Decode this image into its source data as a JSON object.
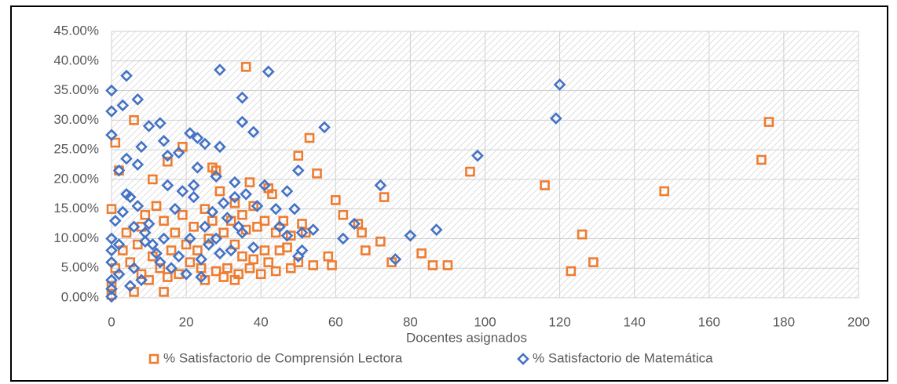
{
  "chart_data": {
    "type": "scatter",
    "x_label": "Docentes asignados",
    "xlim": [
      0,
      200
    ],
    "xticks": [
      0,
      20,
      40,
      60,
      80,
      100,
      120,
      140,
      160,
      180,
      200
    ],
    "ylim": [
      0,
      45
    ],
    "yticks": [
      {
        "value": 0,
        "label": "0.00%"
      },
      {
        "value": 5,
        "label": "5.00%"
      },
      {
        "value": 10,
        "label": "10.00%"
      },
      {
        "value": 15,
        "label": "15.00%"
      },
      {
        "value": 20,
        "label": "20.00%"
      },
      {
        "value": 25,
        "label": "25.00%"
      },
      {
        "value": 30,
        "label": "30.00%"
      },
      {
        "value": 35,
        "label": "35.00%"
      },
      {
        "value": 40,
        "label": "40.00%"
      },
      {
        "value": 45,
        "label": "45.00%"
      }
    ],
    "grid": true,
    "legend": "bottom",
    "series": [
      {
        "name": "% Satisfactorio de Comprensión Lectora",
        "color": "#ed7d31",
        "marker": "square",
        "x": [
          36,
          1,
          6,
          19,
          27,
          11,
          37,
          42,
          50,
          53,
          55,
          60,
          62,
          66,
          67,
          68,
          72,
          73,
          75,
          83,
          86,
          90,
          96,
          116,
          123,
          126,
          129,
          148,
          174,
          176,
          58,
          59,
          54,
          48,
          44,
          40,
          33,
          30,
          25,
          14,
          6,
          0,
          2,
          14,
          15,
          22,
          26,
          28,
          33,
          35,
          38,
          41,
          43,
          44,
          46,
          48,
          51,
          52,
          45,
          41,
          38,
          35,
          31,
          28,
          24,
          21,
          18,
          15,
          10,
          8,
          5,
          3,
          1,
          0,
          0,
          4,
          7,
          9,
          12,
          17,
          20,
          23,
          27,
          30,
          33,
          36,
          39,
          42,
          47,
          50,
          8,
          11,
          13,
          16,
          19,
          25,
          29,
          32,
          34,
          37
        ],
        "values": [
          39,
          26.2,
          30,
          25.5,
          22,
          20,
          19.5,
          18.5,
          24,
          27,
          21,
          16.5,
          14,
          12.5,
          11,
          8,
          9.5,
          17,
          6,
          7.5,
          5.5,
          5.5,
          21.3,
          19,
          4.5,
          10.7,
          6,
          18,
          23.3,
          29.7,
          7,
          5.5,
          5.5,
          5,
          4.5,
          4,
          3,
          3.5,
          3,
          1,
          1,
          15,
          21.5,
          13,
          23,
          12,
          10,
          21.5,
          16,
          14,
          15.5,
          13,
          17.5,
          11,
          13,
          10.5,
          12.5,
          11,
          8,
          8,
          6.5,
          7,
          5,
          4.5,
          5,
          6,
          4,
          3.5,
          3,
          4,
          6,
          8,
          5,
          2,
          0.5,
          11,
          9,
          14,
          15.5,
          11,
          9,
          8,
          13,
          11,
          9,
          11.5,
          12,
          6,
          8.5,
          6,
          12,
          7,
          5,
          8,
          14,
          15,
          18,
          13,
          4,
          5
        ]
      },
      {
        "name": "% Satisfactorio de Matemática",
        "color": "#4472c4",
        "marker": "diamond",
        "x": [
          29,
          42,
          120,
          119,
          4,
          0,
          7,
          3,
          0,
          35,
          35,
          38,
          57,
          98,
          72,
          76,
          80,
          87,
          62,
          65,
          0,
          10,
          13,
          14,
          21,
          23,
          25,
          29,
          8,
          4,
          2,
          7,
          15,
          18,
          23,
          28,
          22,
          33,
          36,
          39,
          41,
          44,
          47,
          49,
          50,
          51,
          54,
          47,
          45,
          51,
          50,
          34,
          32,
          29,
          26,
          24,
          20,
          16,
          13,
          11,
          9,
          6,
          5,
          3,
          1,
          0,
          0,
          0,
          0,
          0,
          0,
          2,
          5,
          8,
          12,
          15,
          17,
          19,
          22,
          25,
          27,
          30,
          33,
          35,
          38,
          31,
          28,
          24,
          21,
          18,
          14,
          10,
          7,
          4,
          2,
          6,
          9
        ],
        "values": [
          38.5,
          38.2,
          36,
          30.3,
          37.5,
          35,
          33.5,
          32.5,
          31.5,
          33.8,
          29.7,
          28,
          28.8,
          24,
          19,
          6.5,
          10.5,
          11.5,
          10,
          12.5,
          27.5,
          29,
          29.5,
          26.5,
          27.8,
          27,
          26,
          25.5,
          25.5,
          23.5,
          21.5,
          22.5,
          24,
          24.5,
          22,
          20.5,
          19,
          19.5,
          17.5,
          15.5,
          19,
          15,
          18,
          15,
          21.5,
          11,
          11.5,
          10.5,
          12,
          8,
          7,
          12,
          8,
          7.5,
          9,
          3.5,
          4,
          5,
          6,
          9,
          11,
          12,
          17,
          14.5,
          13,
          10,
          8,
          6,
          3,
          1.5,
          0.2,
          4,
          2,
          3,
          7.5,
          19,
          15,
          18,
          17,
          12,
          14.5,
          16,
          17,
          11,
          8.5,
          13.5,
          10,
          6.5,
          10,
          7,
          10,
          12.5,
          15.5,
          17.5,
          9,
          5,
          9.5
        ]
      }
    ]
  }
}
